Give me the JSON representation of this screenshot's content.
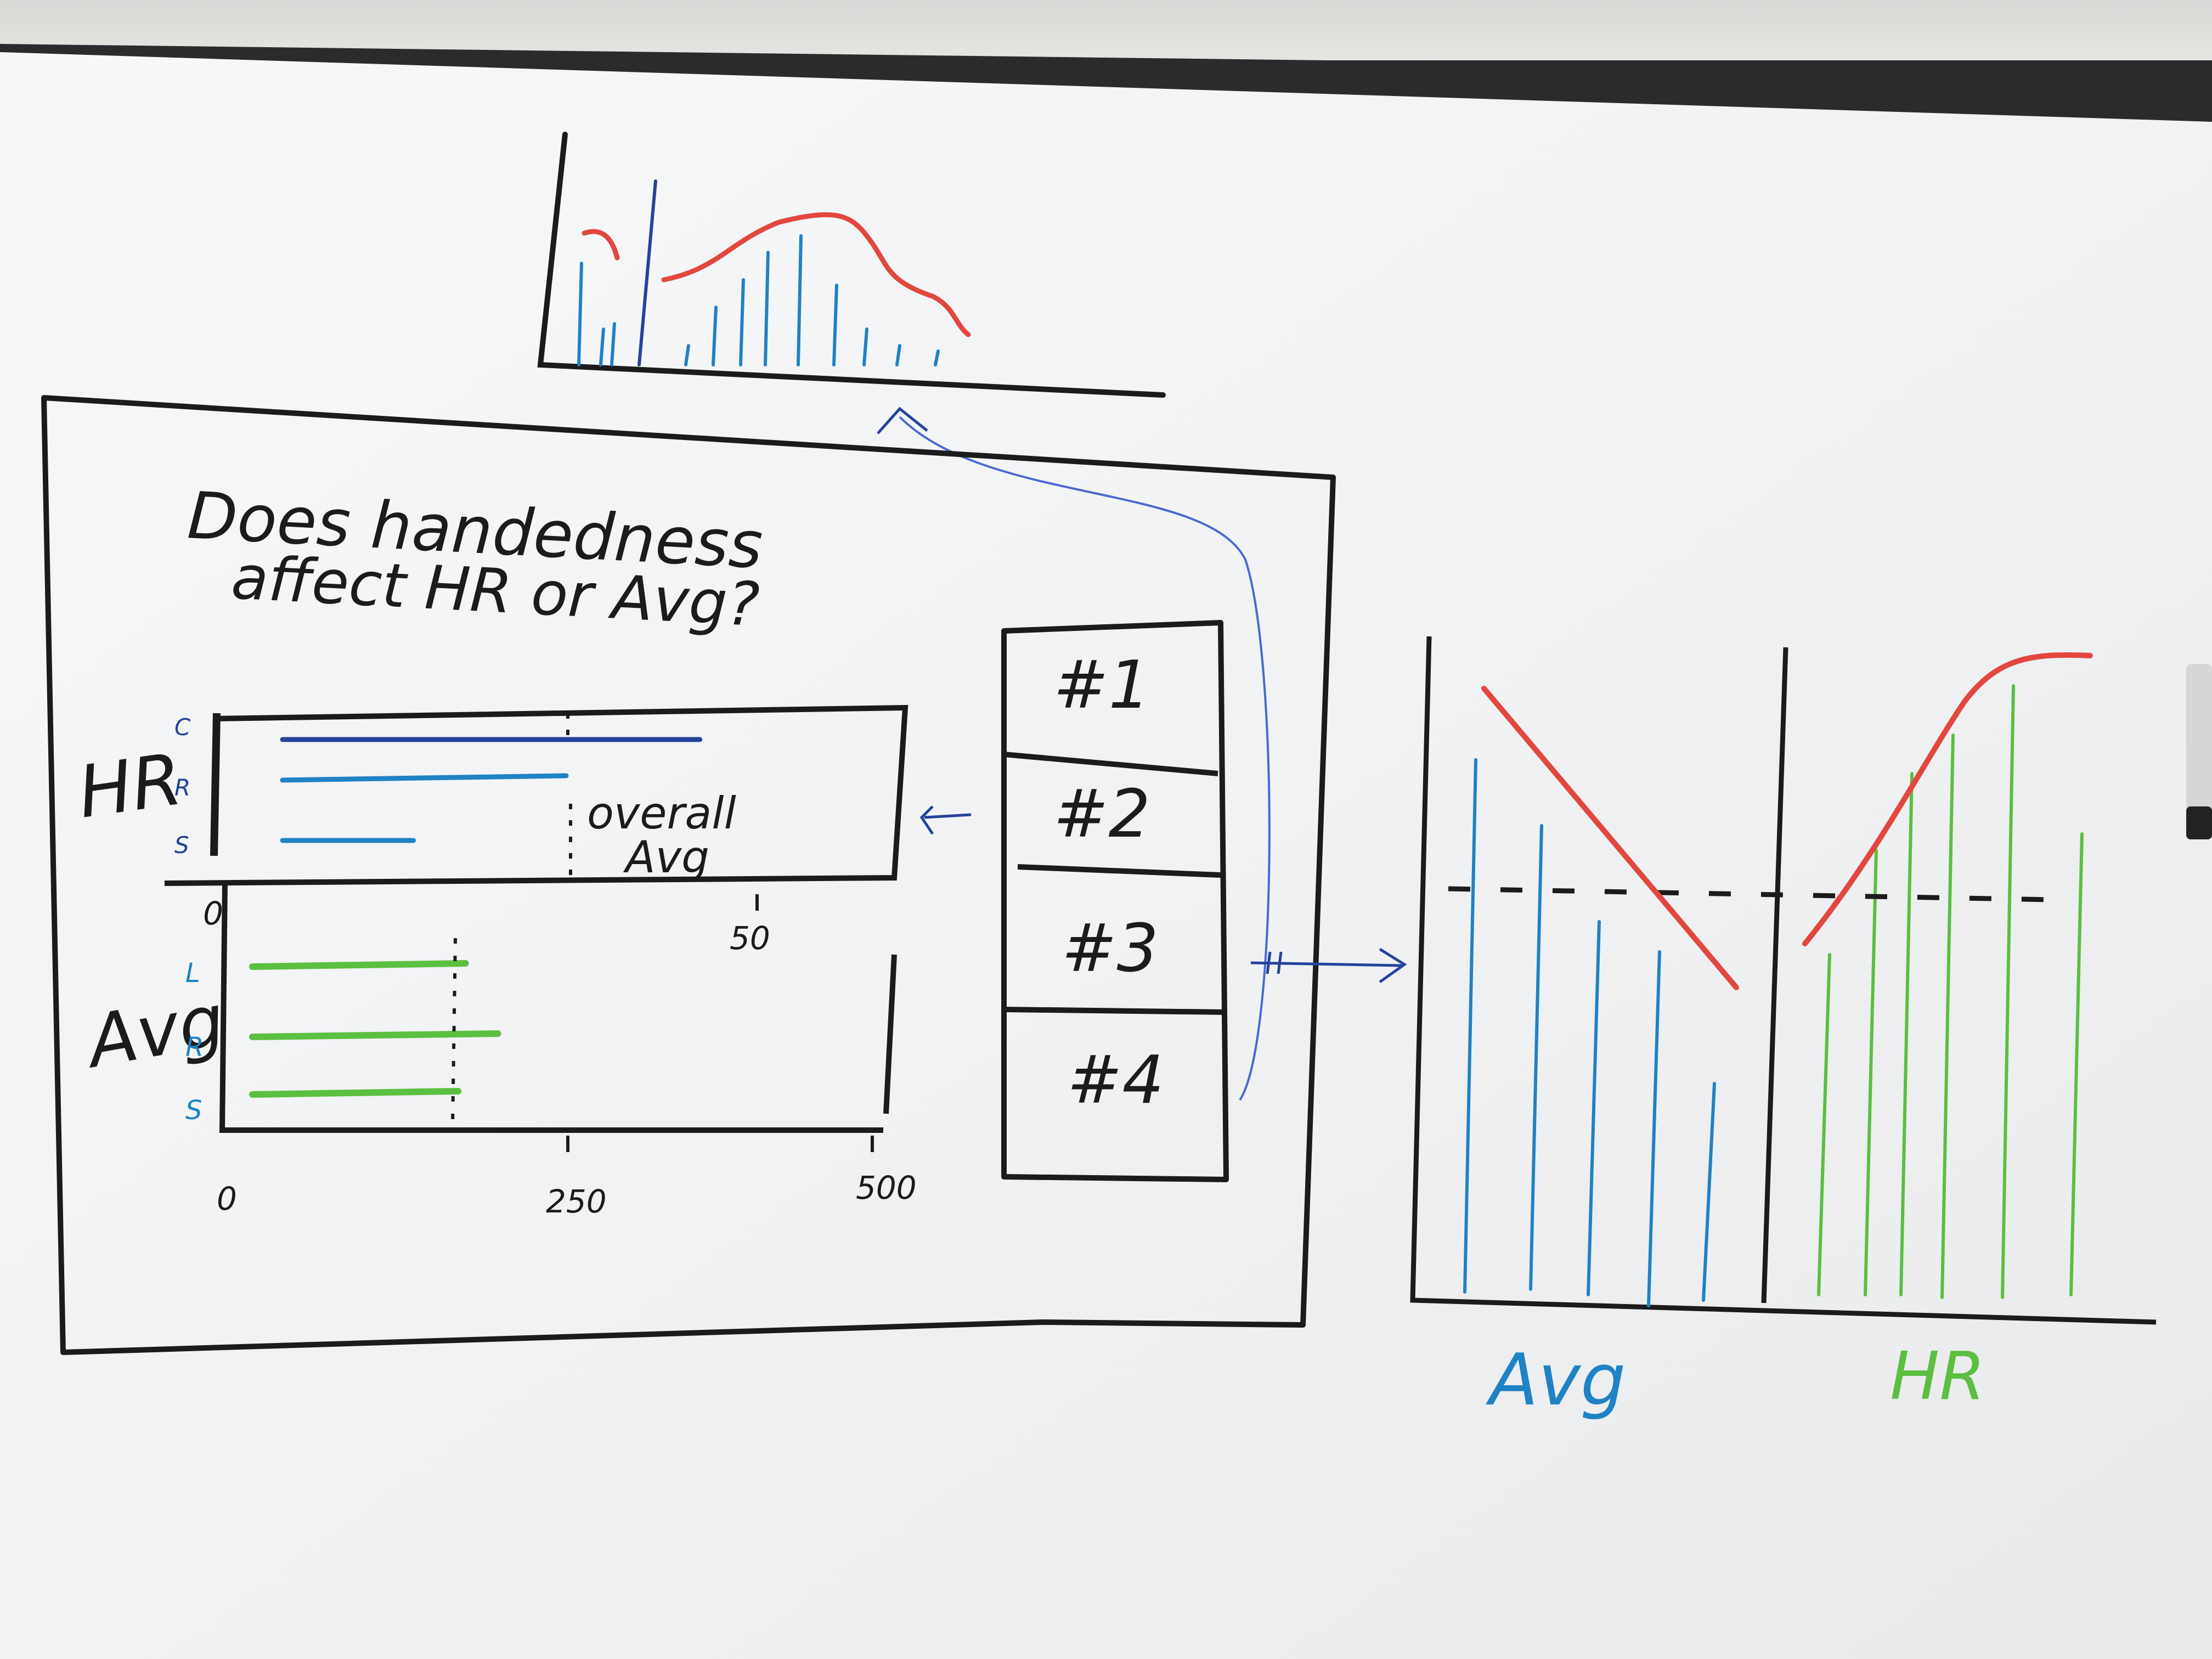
{
  "whiteboard": {
    "question_line1": "Does handedness",
    "question_line2": "affect HR or Avg?",
    "top_chart": {
      "note": ""
    },
    "small_multiples": {
      "hr_label": "HR",
      "avg_label": "Avg",
      "hr_rows": [
        "C",
        "R",
        "S"
      ],
      "avg_rows": [
        "L",
        "R",
        "S"
      ],
      "overall_label_line1": "overall",
      "overall_label_line2": "Avg",
      "hr_axis_ticks": [
        "0",
        "50"
      ],
      "avg_axis_ticks": [
        "0",
        "250",
        "500"
      ],
      "hr_values": [
        44,
        30,
        14
      ],
      "avg_values": [
        172,
        198,
        166
      ]
    },
    "rank_list": [
      "#1",
      "#2",
      "#3",
      "#4"
    ],
    "right_chart": {
      "left_label": "Avg",
      "right_label": "HR"
    },
    "colors": {
      "ink_black": "#1b1b1b",
      "ink_blue": "#1f82c4",
      "ink_navy": "#24439a",
      "ink_green": "#5bbf40",
      "ink_red": "#e2473f",
      "board": "#f4f5f6",
      "frame": "#2a2a2c"
    }
  }
}
